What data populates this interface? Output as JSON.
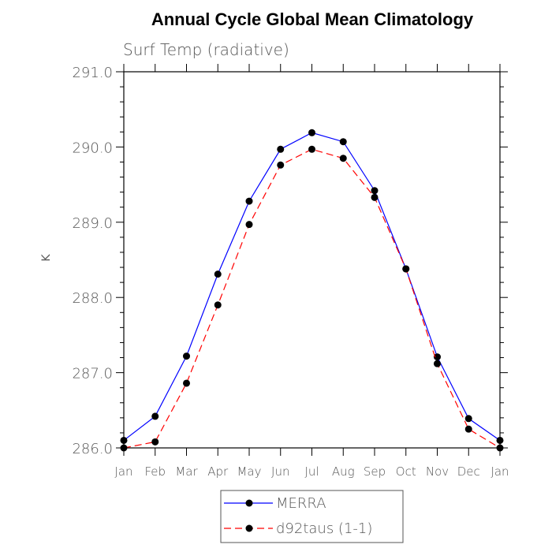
{
  "chart_data": {
    "type": "line",
    "title": "Annual Cycle Global Mean Climatology",
    "subtitle": "Surf Temp (radiative)",
    "xlabel": "",
    "ylabel": "K",
    "categories": [
      "Jan",
      "Feb",
      "Mar",
      "Apr",
      "May",
      "Jun",
      "Jul",
      "Aug",
      "Sep",
      "Oct",
      "Nov",
      "Dec",
      "Jan"
    ],
    "ylim": [
      286.0,
      291.0
    ],
    "yticks": [
      "286.0",
      "287.0",
      "288.0",
      "289.0",
      "290.0",
      "291.0"
    ],
    "series": [
      {
        "name": "MERRA",
        "color": "#0000ff",
        "line_style": "solid",
        "values": [
          286.1,
          286.42,
          287.22,
          288.31,
          289.28,
          289.97,
          290.19,
          290.07,
          289.42,
          288.38,
          287.21,
          286.39,
          286.1
        ]
      },
      {
        "name": "d92taus (1-1)",
        "color": "#ff0000",
        "line_style": "dashed",
        "values": [
          286.0,
          286.08,
          286.86,
          287.9,
          288.97,
          289.76,
          289.97,
          289.85,
          289.33,
          288.38,
          287.12,
          286.25,
          286.0
        ]
      }
    ],
    "legend_position": "bottom-center",
    "marker": "filled-circle"
  }
}
